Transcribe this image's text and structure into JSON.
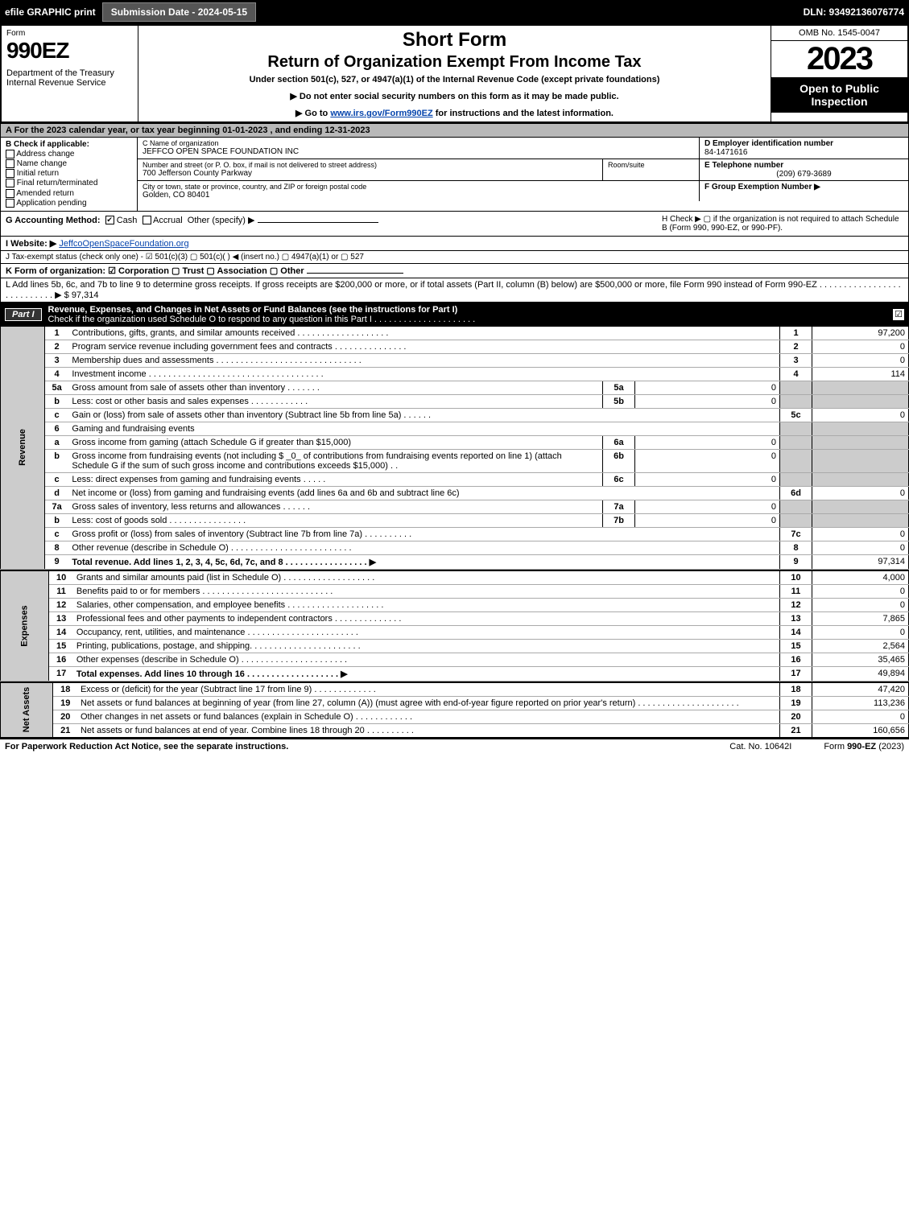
{
  "topbar": {
    "efile": "efile GRAPHIC print",
    "submission": "Submission Date - 2024-05-15",
    "dln": "DLN: 93492136076774"
  },
  "header": {
    "form_label": "Form",
    "form_no": "990EZ",
    "dept": "Department of the Treasury\nInternal Revenue Service",
    "title1": "Short Form",
    "title2": "Return of Organization Exempt From Income Tax",
    "sub": "Under section 501(c), 527, or 4947(a)(1) of the Internal Revenue Code (except private foundations)",
    "instr1": "▶ Do not enter social security numbers on this form as it may be made public.",
    "instr2_pre": "▶ Go to ",
    "instr2_link": "www.irs.gov/Form990EZ",
    "instr2_post": " for instructions and the latest information.",
    "omb": "OMB No. 1545-0047",
    "year": "2023",
    "inspect": "Open to Public Inspection"
  },
  "lineA": "A  For the 2023 calendar year, or tax year beginning 01-01-2023 , and ending 12-31-2023",
  "colB": {
    "title": "B  Check if applicable:",
    "items": [
      "Address change",
      "Name change",
      "Initial return",
      "Final return/terminated",
      "Amended return",
      "Application pending"
    ]
  },
  "colC": {
    "name_lbl": "C Name of organization",
    "name": "JEFFCO OPEN SPACE FOUNDATION INC",
    "addr_lbl": "Number and street (or P. O. box, if mail is not delivered to street address)",
    "addr": "700 Jefferson County Parkway",
    "room_lbl": "Room/suite",
    "city_lbl": "City or town, state or province, country, and ZIP or foreign postal code",
    "city": "Golden, CO  80401"
  },
  "colDEF": {
    "d_lbl": "D Employer identification number",
    "d_val": "84-1471616",
    "e_lbl": "E Telephone number",
    "e_val": "(209) 679-3689",
    "f_lbl": "F Group Exemption Number   ▶"
  },
  "lineG": {
    "label": "G Accounting Method:",
    "cash": "Cash",
    "accrual": "Accrual",
    "other": "Other (specify) ▶",
    "h_text": "H  Check ▶  ▢  if the organization is not required to attach Schedule B (Form 990, 990-EZ, or 990-PF)."
  },
  "lineI": {
    "label": "I Website: ▶",
    "link": "JeffcoOpenSpaceFoundation.org"
  },
  "lineJ": "J Tax-exempt status (check only one) - ☑ 501(c)(3)  ▢ 501(c)(  ) ◀ (insert no.)  ▢ 4947(a)(1) or  ▢ 527",
  "lineK": "K Form of organization:  ☑ Corporation  ▢ Trust  ▢ Association  ▢ Other",
  "lineL": "L Add lines 5b, 6c, and 7b to line 9 to determine gross receipts. If gross receipts are $200,000 or more, or if total assets (Part II, column (B) below) are $500,000 or more, file Form 990 instead of Form 990-EZ .  .  .  .  .  .  .  .  .  .  .  .  .  .  .  .  .  .  .  .  .  .  .  .  .  .  .  ▶ $ 97,314",
  "part1": {
    "label": "Part I",
    "title": "Revenue, Expenses, and Changes in Net Assets or Fund Balances (see the instructions for Part I)",
    "sub": "Check if the organization used Schedule O to respond to any question in this Part I .  .  .  .  .  .  .  .  .  .  .  .  .  .  .  .  .  .  .  .  .",
    "checked": "☑"
  },
  "sidebars": {
    "revenue": "Revenue",
    "expenses": "Expenses",
    "netassets": "Net Assets"
  },
  "rows": [
    {
      "ln": "1",
      "desc": "Contributions, gifts, grants, and similar amounts received .  .  .  .  .  .  .  .  .  .  .  .  .  .  .  .  .  .  .",
      "num": "1",
      "val": "97,200"
    },
    {
      "ln": "2",
      "desc": "Program service revenue including government fees and contracts .  .  .  .  .  .  .  .  .  .  .  .  .  .  .",
      "num": "2",
      "val": "0"
    },
    {
      "ln": "3",
      "desc": "Membership dues and assessments .  .  .  .  .  .  .  .  .  .  .  .  .  .  .  .  .  .  .  .  .  .  .  .  .  .  .  .  .  .",
      "num": "3",
      "val": "0"
    },
    {
      "ln": "4",
      "desc": "Investment income .  .  .  .  .  .  .  .  .  .  .  .  .  .  .  .  .  .  .  .  .  .  .  .  .  .  .  .  .  .  .  .  .  .  .  .",
      "num": "4",
      "val": "114"
    },
    {
      "ln": "5a",
      "desc": "Gross amount from sale of assets other than inventory .  .  .  .  .  .  .",
      "sub": "5a",
      "subval": "0"
    },
    {
      "ln": "b",
      "desc": "Less: cost or other basis and sales expenses .  .  .  .  .  .  .  .  .  .  .  .",
      "sub": "5b",
      "subval": "0"
    },
    {
      "ln": "c",
      "desc": "Gain or (loss) from sale of assets other than inventory (Subtract line 5b from line 5a) .  .  .  .  .  .",
      "num": "5c",
      "val": "0"
    },
    {
      "ln": "6",
      "desc": "Gaming and fundraising events"
    },
    {
      "ln": "a",
      "desc": "Gross income from gaming (attach Schedule G if greater than $15,000)",
      "sub": "6a",
      "subval": "0"
    },
    {
      "ln": "b",
      "desc": "Gross income from fundraising events (not including $ _0_ of contributions from fundraising events reported on line 1) (attach Schedule G if the sum of such gross income and contributions exceeds $15,000)   .   .",
      "sub": "6b",
      "subval": "0"
    },
    {
      "ln": "c",
      "desc": "Less: direct expenses from gaming and fundraising events .  .  .  .  .",
      "sub": "6c",
      "subval": "0"
    },
    {
      "ln": "d",
      "desc": "Net income or (loss) from gaming and fundraising events (add lines 6a and 6b and subtract line 6c)",
      "num": "6d",
      "val": "0"
    },
    {
      "ln": "7a",
      "desc": "Gross sales of inventory, less returns and allowances .  .  .  .  .  .",
      "sub": "7a",
      "subval": "0"
    },
    {
      "ln": "b",
      "desc": "Less: cost of goods sold     .  .  .  .  .  .  .  .  .  .  .  .  .  .  .  .",
      "sub": "7b",
      "subval": "0"
    },
    {
      "ln": "c",
      "desc": "Gross profit or (loss) from sales of inventory (Subtract line 7b from line 7a) .  .  .  .  .  .  .  .  .  .",
      "num": "7c",
      "val": "0"
    },
    {
      "ln": "8",
      "desc": "Other revenue (describe in Schedule O) .  .  .  .  .  .  .  .  .  .  .  .  .  .  .  .  .  .  .  .  .  .  .  .  .",
      "num": "8",
      "val": "0"
    },
    {
      "ln": "9",
      "desc": "Total revenue. Add lines 1, 2, 3, 4, 5c, 6d, 7c, and 8  .  .  .  .  .  .  .  .  .  .  .  .  .  .  .  .  .  ▶",
      "num": "9",
      "val": "97,314",
      "bold": true
    }
  ],
  "exp_rows": [
    {
      "ln": "10",
      "desc": "Grants and similar amounts paid (list in Schedule O) .  .  .  .  .  .  .  .  .  .  .  .  .  .  .  .  .  .  .",
      "num": "10",
      "val": "4,000"
    },
    {
      "ln": "11",
      "desc": "Benefits paid to or for members   .  .  .  .  .  .  .  .  .  .  .  .  .  .  .  .  .  .  .  .  .  .  .  .  .  .  .",
      "num": "11",
      "val": "0"
    },
    {
      "ln": "12",
      "desc": "Salaries, other compensation, and employee benefits .  .  .  .  .  .  .  .  .  .  .  .  .  .  .  .  .  .  .  .",
      "num": "12",
      "val": "0"
    },
    {
      "ln": "13",
      "desc": "Professional fees and other payments to independent contractors .  .  .  .  .  .  .  .  .  .  .  .  .  .",
      "num": "13",
      "val": "7,865"
    },
    {
      "ln": "14",
      "desc": "Occupancy, rent, utilities, and maintenance .  .  .  .  .  .  .  .  .  .  .  .  .  .  .  .  .  .  .  .  .  .  .",
      "num": "14",
      "val": "0"
    },
    {
      "ln": "15",
      "desc": "Printing, publications, postage, and shipping. .  .  .  .  .  .  .  .  .  .  .  .  .  .  .  .  .  .  .  .  .  .",
      "num": "15",
      "val": "2,564"
    },
    {
      "ln": "16",
      "desc": "Other expenses (describe in Schedule O)    .  .  .  .  .  .  .  .  .  .  .  .  .  .  .  .  .  .  .  .  .  .",
      "num": "16",
      "val": "35,465"
    },
    {
      "ln": "17",
      "desc": "Total expenses. Add lines 10 through 16    .  .  .  .  .  .  .  .  .  .  .  .  .  .  .  .  .  .  .  ▶",
      "num": "17",
      "val": "49,894",
      "bold": true
    }
  ],
  "na_rows": [
    {
      "ln": "18",
      "desc": "Excess or (deficit) for the year (Subtract line 17 from line 9)     .  .  .  .  .  .  .  .  .  .  .  .  .",
      "num": "18",
      "val": "47,420"
    },
    {
      "ln": "19",
      "desc": "Net assets or fund balances at beginning of year (from line 27, column (A)) (must agree with end-of-year figure reported on prior year's return) .  .  .  .  .  .  .  .  .  .  .  .  .  .  .  .  .  .  .  .  .",
      "num": "19",
      "val": "113,236"
    },
    {
      "ln": "20",
      "desc": "Other changes in net assets or fund balances (explain in Schedule O) .  .  .  .  .  .  .  .  .  .  .  .",
      "num": "20",
      "val": "0"
    },
    {
      "ln": "21",
      "desc": "Net assets or fund balances at end of year. Combine lines 18 through 20 .  .  .  .  .  .  .  .  .  .",
      "num": "21",
      "val": "160,656"
    }
  ],
  "footer": {
    "left": "For Paperwork Reduction Act Notice, see the separate instructions.",
    "mid": "Cat. No. 10642I",
    "right_pre": "Form ",
    "right_bold": "990-EZ",
    "right_post": " (2023)"
  }
}
